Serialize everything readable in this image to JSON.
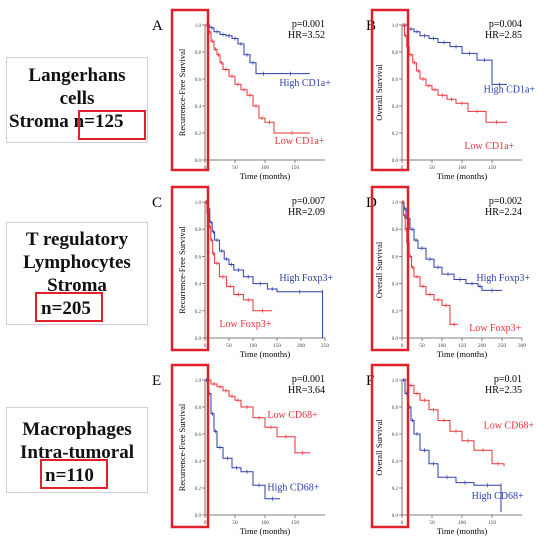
{
  "row_labels": [
    {
      "lines": [
        "Langerhans",
        "cells",
        "Stroma"
      ],
      "n": "n=125"
    },
    {
      "lines": [
        "T regulatory",
        "Lymphocytes",
        "Stroma"
      ],
      "n": "n=205"
    },
    {
      "lines": [
        "Macrophages",
        "Intra-tumoral"
      ],
      "n": "n=110"
    }
  ],
  "colors": {
    "high_blue": "#2b3fa8",
    "low_red": "#e8323a",
    "highlight": "#e0202a",
    "axis": "#555555"
  },
  "chart_data": [
    {
      "panel": "A",
      "type": "line",
      "xlabel": "Time (months)",
      "ylabel": "Recurrence-Free Survival",
      "xlim": [
        0,
        200
      ],
      "ylim": [
        0,
        1.0
      ],
      "xticks": [
        0,
        50,
        100,
        150
      ],
      "yticks": [
        0.0,
        0.2,
        0.4,
        0.6,
        0.8,
        1.0
      ],
      "p": "p=0.001",
      "hr": "HR=3.52",
      "series": [
        {
          "name": "High CD1a+",
          "color": "#2b3fa8",
          "x": [
            0,
            8,
            15,
            25,
            35,
            45,
            55,
            65,
            75,
            85,
            110,
            175
          ],
          "y": [
            1.0,
            0.98,
            0.95,
            0.93,
            0.92,
            0.9,
            0.86,
            0.78,
            0.72,
            0.64,
            0.64,
            0.64
          ]
        },
        {
          "name": "Low CD1a+",
          "color": "#e8323a",
          "x": [
            0,
            6,
            10,
            15,
            20,
            25,
            30,
            40,
            50,
            60,
            70,
            80,
            90,
            100,
            115,
            175
          ],
          "y": [
            1.0,
            0.95,
            0.88,
            0.82,
            0.78,
            0.72,
            0.67,
            0.62,
            0.56,
            0.52,
            0.48,
            0.4,
            0.31,
            0.28,
            0.2,
            0.2
          ]
        }
      ]
    },
    {
      "panel": "B",
      "type": "line",
      "xlabel": "Time (months)",
      "ylabel": "Overall Survival",
      "xlim": [
        0,
        200
      ],
      "ylim": [
        0,
        1.0
      ],
      "xticks": [
        0,
        50,
        100,
        150
      ],
      "yticks": [
        0.0,
        0.2,
        0.4,
        0.6,
        0.8,
        1.0
      ],
      "p": "p=0.004",
      "hr": "HR=2.85",
      "series": [
        {
          "name": "High CD1a+",
          "color": "#2b3fa8",
          "x": [
            0,
            10,
            20,
            30,
            45,
            60,
            80,
            100,
            125,
            150,
            175
          ],
          "y": [
            1.0,
            0.97,
            0.95,
            0.92,
            0.9,
            0.87,
            0.84,
            0.79,
            0.74,
            0.56,
            0.56
          ]
        },
        {
          "name": "Low CD1a+",
          "color": "#e8323a",
          "x": [
            0,
            4,
            8,
            12,
            18,
            24,
            30,
            40,
            50,
            60,
            75,
            90,
            110,
            140,
            175
          ],
          "y": [
            1.0,
            0.92,
            0.84,
            0.78,
            0.72,
            0.66,
            0.6,
            0.55,
            0.52,
            0.48,
            0.45,
            0.42,
            0.36,
            0.28,
            0.28
          ]
        }
      ]
    },
    {
      "panel": "C",
      "type": "line",
      "xlabel": "Time (months)",
      "ylabel": "Recurrence-Free Survival",
      "xlim": [
        0,
        250
      ],
      "ylim": [
        0,
        1.0
      ],
      "xticks": [
        0,
        50,
        100,
        150,
        200,
        250
      ],
      "yticks": [
        0.0,
        0.2,
        0.4,
        0.6,
        0.8,
        1.0
      ],
      "p": "p=0.007",
      "hr": "HR=2.09",
      "series": [
        {
          "name": "High Foxp3+",
          "color": "#2b3fa8",
          "x": [
            0,
            5,
            10,
            15,
            20,
            30,
            40,
            50,
            60,
            80,
            100,
            130,
            150,
            245,
            245
          ],
          "y": [
            1.0,
            0.95,
            0.85,
            0.78,
            0.72,
            0.64,
            0.58,
            0.54,
            0.5,
            0.45,
            0.4,
            0.36,
            0.34,
            0.34,
            0.0
          ]
        },
        {
          "name": "Low Foxp3+",
          "color": "#e8323a",
          "x": [
            0,
            4,
            8,
            12,
            16,
            20,
            30,
            45,
            60,
            80,
            100,
            140
          ],
          "y": [
            1.0,
            0.92,
            0.82,
            0.72,
            0.62,
            0.55,
            0.45,
            0.38,
            0.32,
            0.28,
            0.2,
            0.2
          ]
        }
      ]
    },
    {
      "panel": "D",
      "type": "line",
      "xlabel": "Time (months)",
      "ylabel": "Overall Survival",
      "xlim": [
        0,
        300
      ],
      "ylim": [
        0,
        1.0
      ],
      "xticks": [
        0,
        50,
        100,
        150,
        200,
        250,
        300
      ],
      "yticks": [
        0.0,
        0.2,
        0.4,
        0.6,
        0.8,
        1.0
      ],
      "p": "p=0.002",
      "hr": "HR=2.24",
      "series": [
        {
          "name": "High Foxp3+",
          "color": "#2b3fa8",
          "x": [
            0,
            5,
            10,
            20,
            30,
            40,
            60,
            80,
            100,
            130,
            160,
            190,
            200,
            250
          ],
          "y": [
            1.0,
            0.95,
            0.88,
            0.8,
            0.72,
            0.66,
            0.58,
            0.52,
            0.47,
            0.43,
            0.4,
            0.38,
            0.35,
            0.35
          ]
        },
        {
          "name": "Low Foxp3+",
          "color": "#e8323a",
          "x": [
            0,
            4,
            8,
            12,
            18,
            24,
            30,
            45,
            60,
            80,
            100,
            120,
            140
          ],
          "y": [
            1.0,
            0.9,
            0.8,
            0.7,
            0.6,
            0.52,
            0.45,
            0.38,
            0.32,
            0.28,
            0.24,
            0.1,
            0.1
          ]
        }
      ]
    },
    {
      "panel": "E",
      "type": "line",
      "xlabel": "Time (months)",
      "ylabel": "Recurrence-Free Survival",
      "xlim": [
        0,
        200
      ],
      "ylim": [
        0,
        1.0
      ],
      "xticks": [
        0,
        50,
        100,
        150
      ],
      "yticks": [
        0.0,
        0.2,
        0.4,
        0.6,
        0.8,
        1.0
      ],
      "p": "p=0.001",
      "hr": "HR=3.64",
      "series": [
        {
          "name": "Low CD68+",
          "color": "#e8323a",
          "x": [
            0,
            10,
            20,
            30,
            40,
            50,
            60,
            80,
            100,
            120,
            150,
            175
          ],
          "y": [
            1.0,
            0.97,
            0.95,
            0.92,
            0.88,
            0.85,
            0.8,
            0.72,
            0.65,
            0.58,
            0.46,
            0.46
          ]
        },
        {
          "name": "High CD68+",
          "color": "#2b3fa8",
          "x": [
            0,
            5,
            10,
            15,
            20,
            30,
            45,
            60,
            80,
            100,
            125
          ],
          "y": [
            1.0,
            0.9,
            0.75,
            0.62,
            0.5,
            0.42,
            0.35,
            0.32,
            0.22,
            0.12,
            0.12
          ]
        }
      ]
    },
    {
      "panel": "F",
      "type": "line",
      "xlabel": "Time (months)",
      "ylabel": "Overall Survival",
      "xlim": [
        0,
        200
      ],
      "ylim": [
        0,
        1.0
      ],
      "xticks": [
        0,
        50,
        100,
        150
      ],
      "yticks": [
        0.0,
        0.2,
        0.4,
        0.6,
        0.8,
        1.0
      ],
      "p": "p=0.01",
      "hr": "HR=2.35",
      "series": [
        {
          "name": "Low CD68+",
          "color": "#e8323a",
          "x": [
            0,
            10,
            20,
            30,
            45,
            60,
            80,
            100,
            120,
            150,
            170
          ],
          "y": [
            1.0,
            0.96,
            0.9,
            0.85,
            0.78,
            0.7,
            0.62,
            0.55,
            0.48,
            0.38,
            0.36
          ]
        },
        {
          "name": "High CD68+",
          "color": "#2b3fa8",
          "x": [
            0,
            5,
            10,
            15,
            20,
            30,
            45,
            60,
            90,
            120,
            165,
            165
          ],
          "y": [
            1.0,
            0.9,
            0.8,
            0.7,
            0.6,
            0.48,
            0.38,
            0.28,
            0.24,
            0.22,
            0.22,
            0.02
          ]
        }
      ]
    }
  ]
}
